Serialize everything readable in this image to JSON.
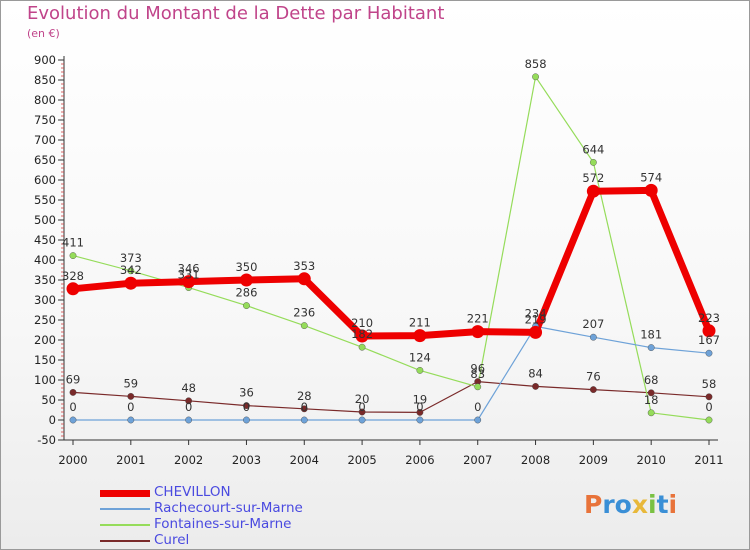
{
  "header": {
    "title": "Evolution du Montant de la Dette par Habitant",
    "unit": "(en €)"
  },
  "logo": {
    "text": "Proxiti",
    "colors": [
      "#e8733a",
      "#3a8fd6",
      "#3a8fd6",
      "#e8b83a",
      "#7ac143",
      "#3a8fd6",
      "#e8733a"
    ]
  },
  "chart_data": {
    "type": "line",
    "title": "Evolution du Montant de la Dette par Habitant",
    "subtitle": "(en €)",
    "xlabel": "",
    "ylabel": "",
    "categories": [
      "2000",
      "2001",
      "2002",
      "2003",
      "2004",
      "2005",
      "2006",
      "2007",
      "2008",
      "2009",
      "2010",
      "2011"
    ],
    "ylim": [
      -50,
      900
    ],
    "yticks": [
      "-50",
      "0",
      "50",
      "100",
      "150",
      "200",
      "250",
      "300",
      "350",
      "400",
      "450",
      "500",
      "550",
      "600",
      "650",
      "700",
      "750",
      "800",
      "850",
      "900"
    ],
    "grid": false,
    "legend_position": "bottom-left",
    "series": [
      {
        "name": "CHEVILLON",
        "color": "#ee0000",
        "values": [
          328,
          342,
          346,
          350,
          353,
          210,
          211,
          221,
          219,
          572,
          574,
          223
        ],
        "labels": [
          "328",
          "342",
          "346",
          "350",
          "353",
          "210",
          "211",
          "221",
          "219",
          "572",
          "574",
          "223"
        ]
      },
      {
        "name": "Rachecourt-sur-Marne",
        "color": "#6ea2d8",
        "values": [
          0,
          0,
          0,
          0,
          0,
          0,
          0,
          0,
          234,
          207,
          181,
          167
        ],
        "labels": [
          "0",
          "0",
          "0",
          "0",
          "0",
          "0",
          "0",
          "0",
          "234",
          "207",
          "181",
          "167"
        ]
      },
      {
        "name": "Fontaines-sur-Marne",
        "color": "#95dc5a",
        "values": [
          411,
          373,
          331,
          286,
          236,
          182,
          124,
          83,
          858,
          644,
          18,
          0
        ],
        "labels": [
          "411",
          "373",
          "331",
          "286",
          "236",
          "182",
          "124",
          "83",
          "858",
          "644",
          "18",
          "0"
        ]
      },
      {
        "name": "Curel",
        "color": "#7a2a2a",
        "values": [
          69,
          59,
          48,
          36,
          28,
          20,
          19,
          96,
          84,
          76,
          68,
          58
        ],
        "labels": [
          "69",
          "59",
          "48",
          "36",
          "28",
          "20",
          "19",
          "96",
          "84",
          "76",
          "68",
          "58"
        ]
      }
    ]
  }
}
